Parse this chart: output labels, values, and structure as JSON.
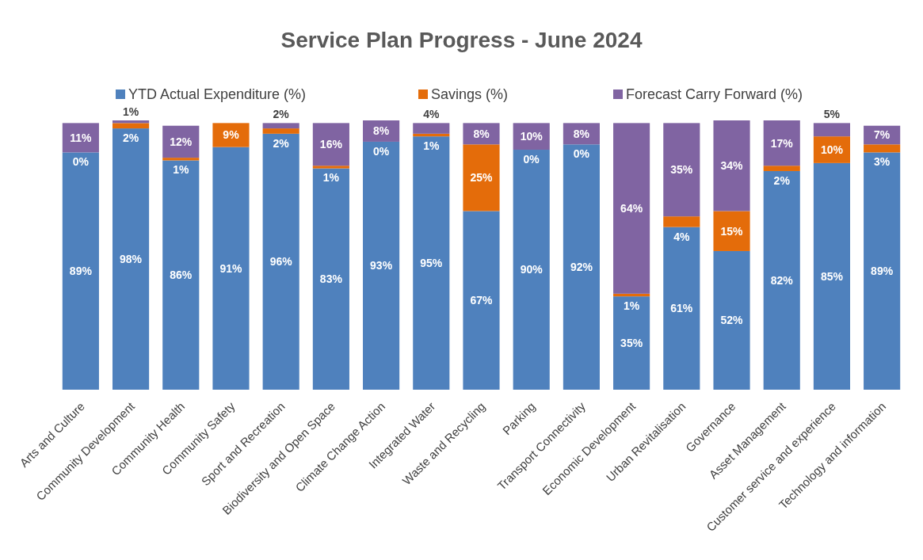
{
  "chart_data": {
    "type": "bar",
    "title": "Service Plan Progress - June 2024",
    "stacked": true,
    "legend": "top",
    "grid": false,
    "tick_labels": "x",
    "ylim": [
      0,
      101
    ],
    "categories": [
      "Arts and Culture",
      "Community Development",
      "Community Health",
      "Community Safety",
      "Sport and Recreation",
      "Biodiversity and Open Space",
      "Climate Change Action",
      "Integrated Water",
      "Waste and Recycling",
      "Parking",
      "Transport Connectivity",
      "Economic Development",
      "Urban Revitalisation",
      "Governance",
      "Asset Management",
      "Customer service and experience",
      "Technology and information"
    ],
    "series": [
      {
        "name": "YTD Actual Expenditure (%)",
        "color": "#4f81bd",
        "values": [
          89,
          98,
          86,
          91,
          96,
          83,
          93,
          95,
          67,
          90,
          92,
          35,
          61,
          52,
          82,
          85,
          89
        ],
        "value_labels": [
          "89%",
          "98%",
          "86%",
          "91%",
          "96%",
          "83%",
          "93%",
          "95%",
          "67%",
          "90%",
          "92%",
          "35%",
          "61%",
          "52%",
          "82%",
          "85%",
          "89%"
        ]
      },
      {
        "name": "Savings (%)",
        "color": "#e46c0a",
        "values": [
          0,
          2,
          1,
          9,
          2,
          1,
          0,
          1,
          25,
          0,
          0,
          1,
          4,
          15,
          2,
          10,
          3
        ],
        "value_labels": [
          "0%",
          "2%",
          "1%",
          "9%",
          "2%",
          "1%",
          "0%",
          "1%",
          "25%",
          "0%",
          "0%",
          "1%",
          "4%",
          "15%",
          "2%",
          "10%",
          "3%"
        ]
      },
      {
        "name": "Forecast Carry Forward (%)",
        "color": "#8064a2",
        "values": [
          11,
          1,
          12,
          0,
          2,
          16,
          8,
          4,
          8,
          10,
          8,
          64,
          35,
          34,
          17,
          5,
          7
        ],
        "value_labels": [
          "11%",
          "1%",
          "12%",
          null,
          "2%",
          "16%",
          "8%",
          "4%",
          "8%",
          "10%",
          "8%",
          "64%",
          "35%",
          "34%",
          "17%",
          "5%",
          "7%"
        ]
      }
    ]
  }
}
